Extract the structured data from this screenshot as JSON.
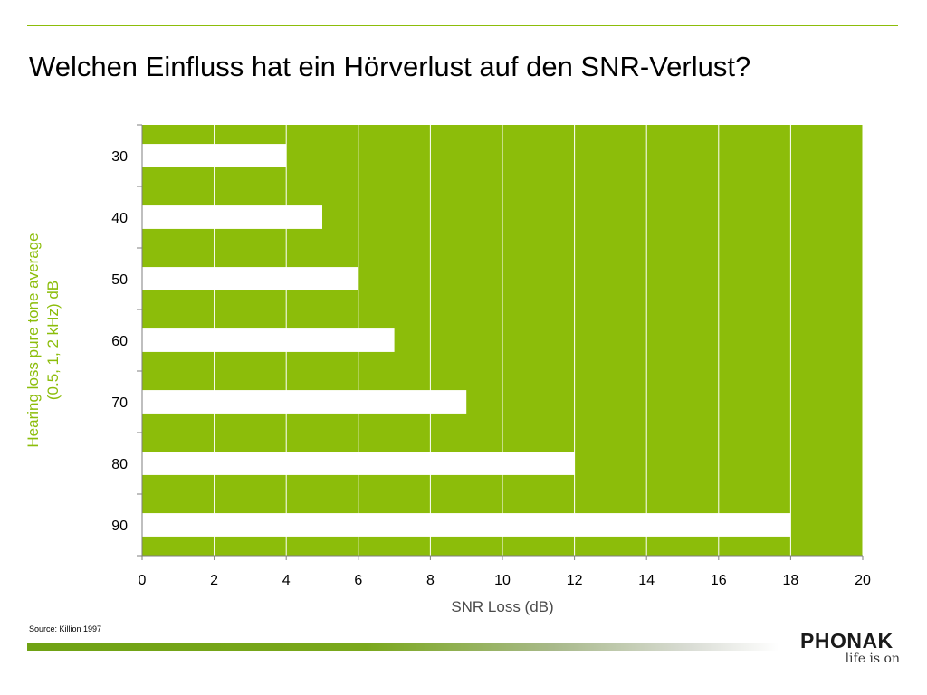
{
  "slide": {
    "title": "Welchen Einfluss hat ein Hörverlust auf den SNR-Verlust?",
    "source": "Source: Killion 1997",
    "logo_word": "PHONAK",
    "logo_tagline": "life is on"
  },
  "colors": {
    "plot_background": "#8cbd0a",
    "bar_fill": "#ffffff",
    "gridline": "#ffffff",
    "accent": "#8cbd0a",
    "text": "#000000"
  },
  "chart_data": {
    "type": "bar",
    "orientation": "horizontal",
    "categories": [
      "30",
      "40",
      "50",
      "60",
      "70",
      "80",
      "90"
    ],
    "values": [
      4,
      5,
      6,
      7,
      9,
      12,
      18
    ],
    "xlabel": "SNR Loss (dB)",
    "ylabel": "Hearing loss pure tone average\n(0.5, 1, 2 kHz) dB",
    "xlim": [
      0,
      20
    ],
    "xticks": [
      0,
      2,
      4,
      6,
      8,
      10,
      12,
      14,
      16,
      18,
      20
    ],
    "grid": "vertical",
    "legend": "none"
  }
}
